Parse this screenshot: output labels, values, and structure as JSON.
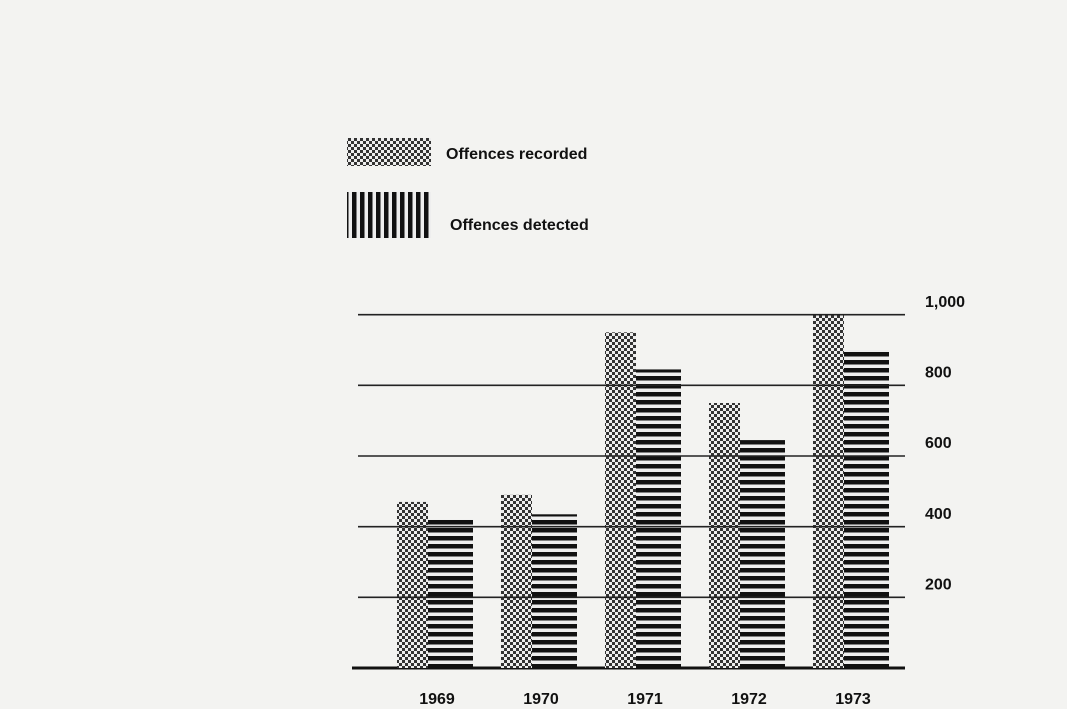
{
  "chart_data": {
    "type": "bar",
    "categories": [
      "1969",
      "1970",
      "1971",
      "1972",
      "1973"
    ],
    "series": [
      {
        "name": "Offences recorded",
        "values": [
          470,
          490,
          950,
          750,
          1000
        ]
      },
      {
        "name": "Offences detected",
        "values": [
          420,
          435,
          845,
          645,
          900
        ]
      }
    ],
    "ylim": [
      0,
      1050
    ],
    "yticks": [
      200,
      400,
      600,
      800,
      {
        "value": 1000,
        "label": "1,000"
      }
    ],
    "grid": true
  }
}
